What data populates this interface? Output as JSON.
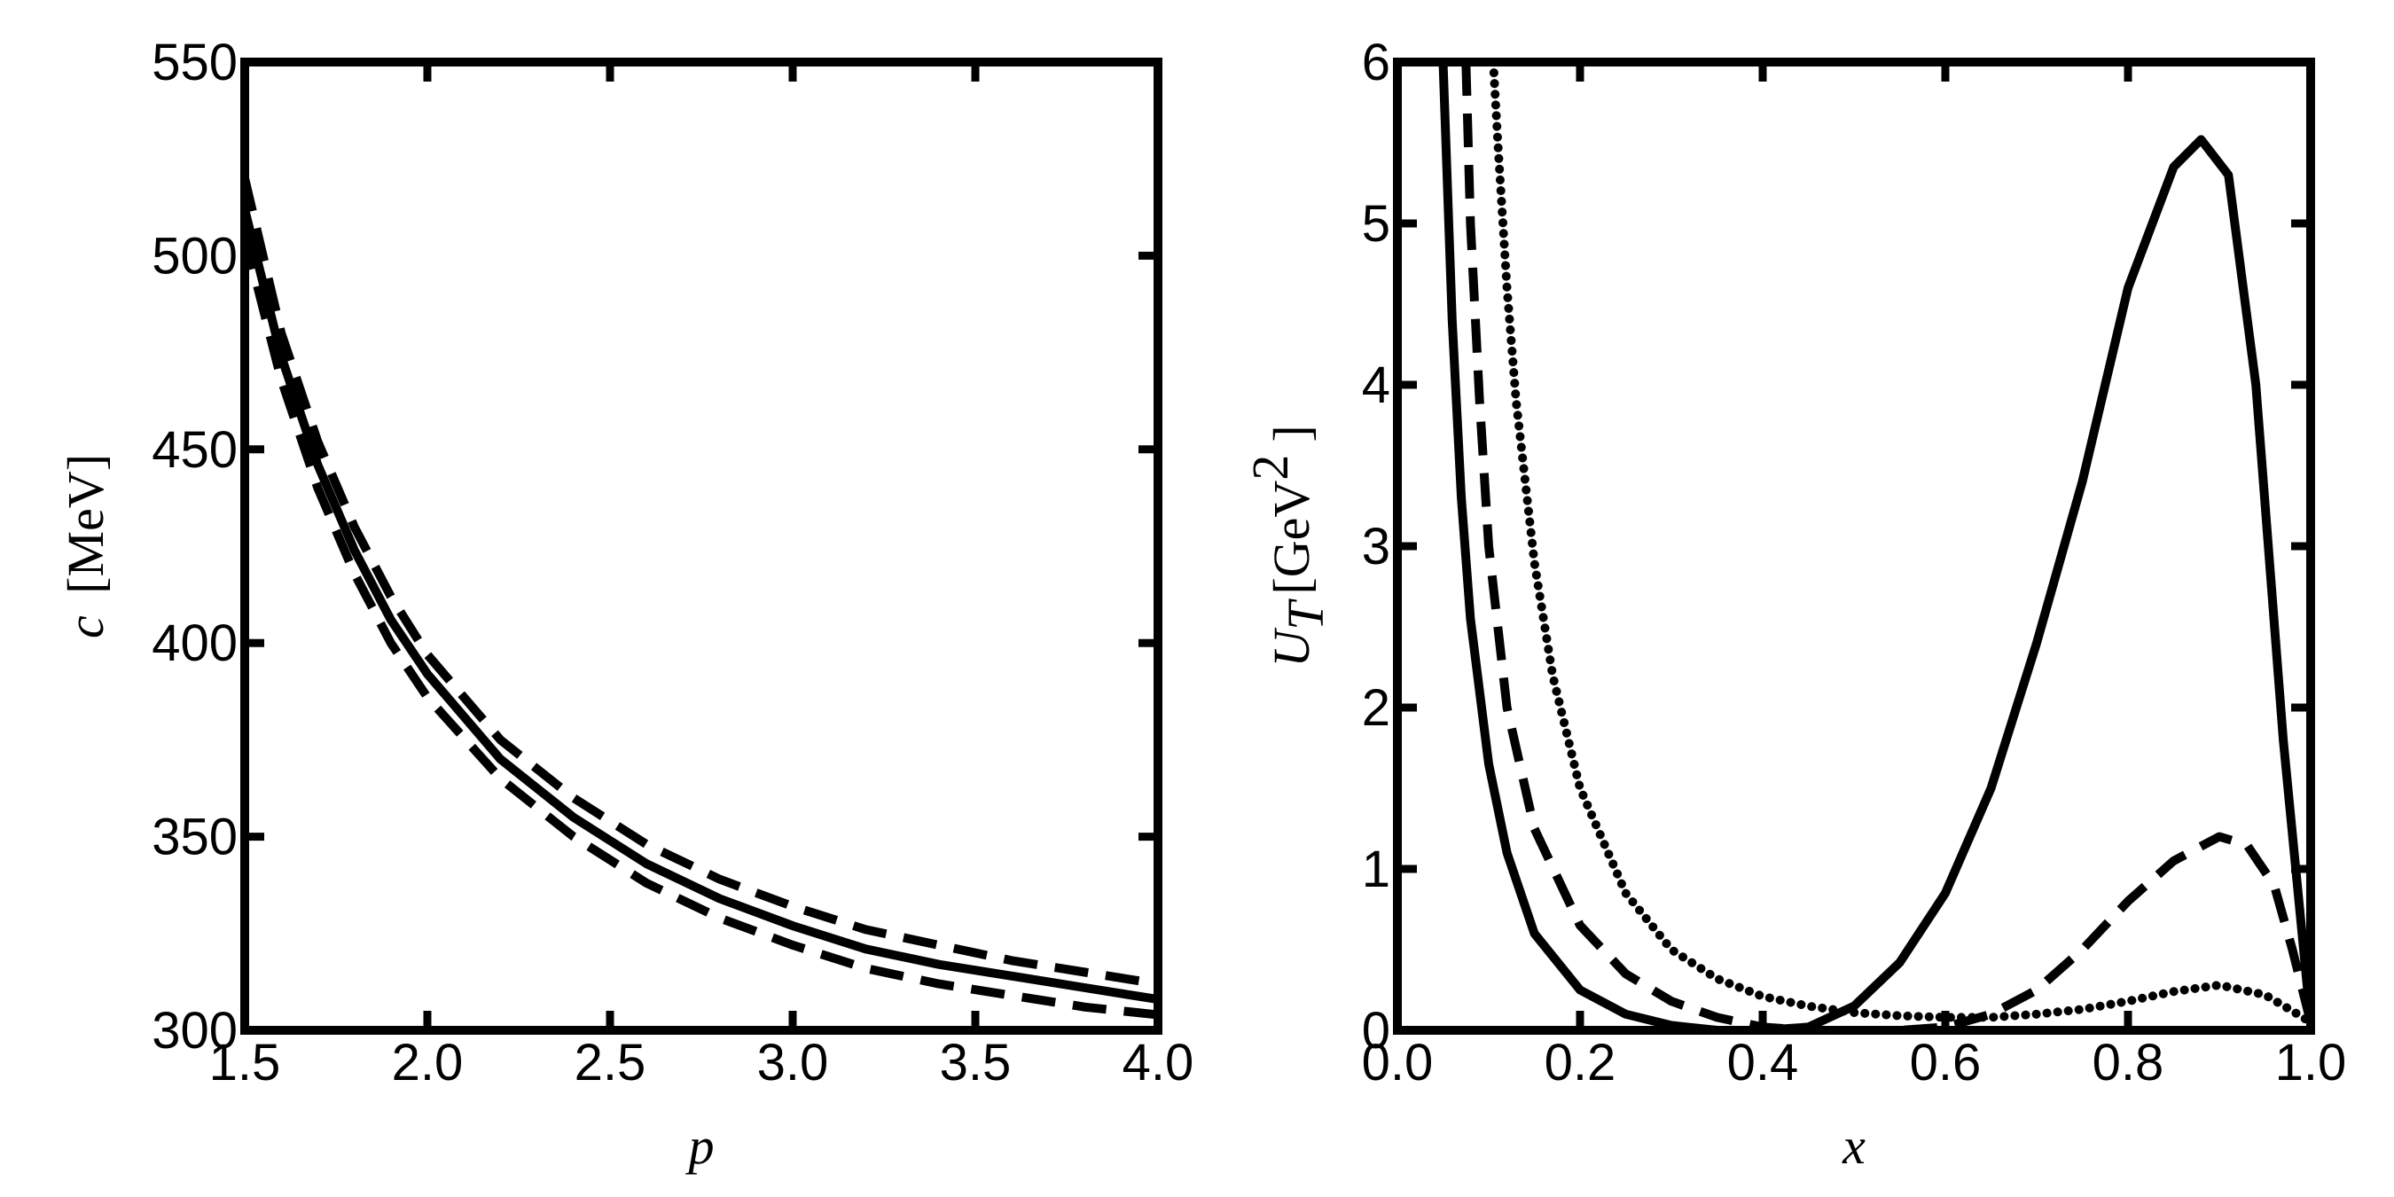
{
  "chart_data": [
    {
      "type": "line",
      "title": "",
      "xlabel": "p",
      "ylabel_symbol": "c",
      "ylabel_unit": "[MeV]",
      "xlim": [
        1.5,
        4.0
      ],
      "ylim": [
        300,
        550
      ],
      "xticks": [
        1.5,
        2.0,
        2.5,
        3.0,
        3.5,
        4.0
      ],
      "xtick_labels": [
        "1.5",
        "2.0",
        "2.5",
        "3.0",
        "3.5",
        "4.0"
      ],
      "yticks": [
        300,
        350,
        400,
        450,
        500,
        550
      ],
      "ytick_labels": [
        "300",
        "350",
        "400",
        "450",
        "500",
        "550"
      ],
      "grid": false,
      "legend": "none",
      "series": [
        {
          "style": "solid",
          "x": [
            1.5,
            1.6,
            1.7,
            1.8,
            1.9,
            2.0,
            2.2,
            2.4,
            2.6,
            2.8,
            3.0,
            3.2,
            3.4,
            3.6,
            3.8,
            4.0
          ],
          "y": [
            512,
            474,
            446,
            424,
            406,
            392,
            370,
            355,
            343,
            334,
            327,
            321,
            317,
            314,
            311,
            308
          ]
        },
        {
          "style": "dashed",
          "x": [
            1.5,
            1.6,
            1.7,
            1.8,
            1.9,
            2.0,
            2.2,
            2.4,
            2.6,
            2.8,
            3.0,
            3.2,
            3.4,
            3.6,
            3.8,
            4.0
          ],
          "y": [
            520,
            480,
            452,
            430,
            412,
            397,
            375,
            360,
            348,
            339,
            332,
            326,
            322,
            318,
            315,
            312
          ]
        },
        {
          "style": "dashed",
          "x": [
            1.5,
            1.6,
            1.7,
            1.8,
            1.9,
            2.0,
            2.2,
            2.4,
            2.6,
            2.8,
            3.0,
            3.2,
            3.4,
            3.6,
            3.8,
            4.0
          ],
          "y": [
            505,
            468,
            440,
            418,
            400,
            386,
            365,
            350,
            338,
            329,
            322,
            316,
            312,
            309,
            306,
            304
          ]
        }
      ]
    },
    {
      "type": "line",
      "title": "",
      "xlabel": "x",
      "ylabel_symbol": "U",
      "ylabel_subscript": "T",
      "ylabel_unit_open": "[GeV",
      "ylabel_unit_sup": "2",
      "ylabel_unit_close": "]",
      "xlim": [
        0.0,
        1.0
      ],
      "ylim": [
        0,
        6
      ],
      "xticks": [
        0.0,
        0.2,
        0.4,
        0.6,
        0.8,
        1.0
      ],
      "xtick_labels": [
        "0.0",
        "0.2",
        "0.4",
        "0.6",
        "0.8",
        "1.0"
      ],
      "yticks": [
        0,
        1,
        2,
        3,
        4,
        5,
        6
      ],
      "ytick_labels": [
        "0",
        "1",
        "2",
        "3",
        "4",
        "5",
        "6"
      ],
      "grid": false,
      "legend": "none",
      "series": [
        {
          "style": "solid",
          "x": [
            0.05,
            0.06,
            0.07,
            0.08,
            0.1,
            0.12,
            0.15,
            0.2,
            0.25,
            0.3,
            0.35,
            0.4,
            0.45,
            0.5,
            0.55,
            0.6,
            0.65,
            0.7,
            0.75,
            0.8,
            0.85,
            0.88,
            0.91,
            0.94,
            0.97,
            1.0
          ],
          "y": [
            6.0,
            4.4,
            3.3,
            2.55,
            1.65,
            1.1,
            0.6,
            0.25,
            0.1,
            0.03,
            0.0,
            0.0,
            0.02,
            0.15,
            0.42,
            0.85,
            1.5,
            2.4,
            3.4,
            4.6,
            5.35,
            5.52,
            5.3,
            4.0,
            1.8,
            0.05
          ]
        },
        {
          "style": "dashed",
          "x": [
            0.075,
            0.08,
            0.09,
            0.1,
            0.12,
            0.15,
            0.2,
            0.25,
            0.3,
            0.35,
            0.4,
            0.45,
            0.5,
            0.55,
            0.6,
            0.65,
            0.7,
            0.75,
            0.8,
            0.85,
            0.9,
            0.93,
            0.96,
            0.98,
            1.0
          ],
          "y": [
            6.0,
            5.0,
            3.9,
            3.0,
            2.0,
            1.25,
            0.65,
            0.35,
            0.18,
            0.08,
            0.02,
            0.0,
            0.0,
            0.0,
            0.02,
            0.1,
            0.25,
            0.5,
            0.8,
            1.05,
            1.2,
            1.15,
            0.9,
            0.5,
            0.05
          ]
        },
        {
          "style": "dotted",
          "x": [
            0.105,
            0.11,
            0.12,
            0.13,
            0.15,
            0.17,
            0.2,
            0.25,
            0.3,
            0.35,
            0.4,
            0.45,
            0.5,
            0.55,
            0.6,
            0.65,
            0.7,
            0.75,
            0.8,
            0.85,
            0.9,
            0.95,
            0.98,
            1.0
          ],
          "y": [
            6.0,
            5.5,
            4.6,
            3.9,
            2.9,
            2.2,
            1.5,
            0.85,
            0.5,
            0.32,
            0.21,
            0.15,
            0.11,
            0.09,
            0.08,
            0.08,
            0.1,
            0.13,
            0.18,
            0.24,
            0.28,
            0.22,
            0.12,
            0.05
          ]
        }
      ]
    }
  ]
}
